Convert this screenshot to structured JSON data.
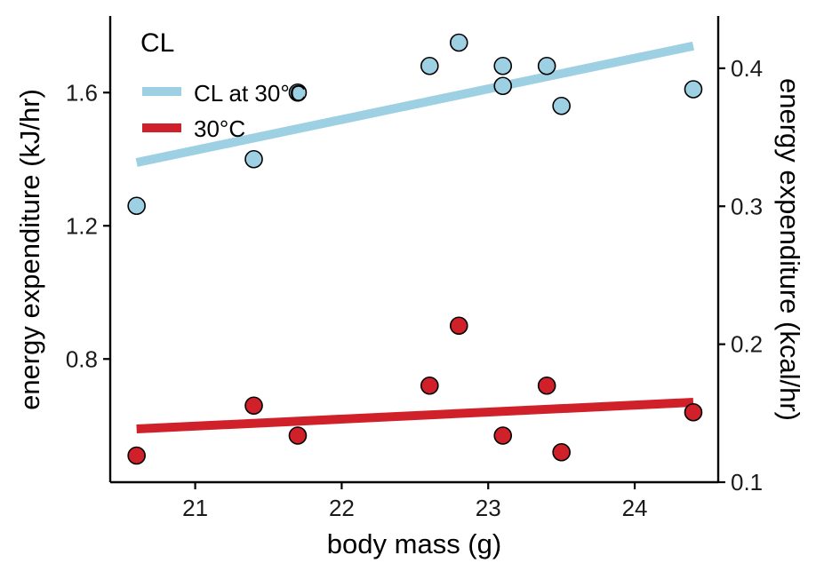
{
  "chart_data": {
    "type": "scatter",
    "xlabel": "body mass (g)",
    "ylabel": "energy expenditure (kJ/hr)",
    "y2label": "energy expenditure (kcal/hr)",
    "xlim": [
      20.42,
      24.57
    ],
    "ylim": [
      0.43,
      1.83
    ],
    "y2lim": [
      0.1,
      0.4379
    ],
    "xticks": [
      21,
      22,
      23,
      24
    ],
    "yticks": [
      0.8,
      1.2,
      1.6
    ],
    "y2ticks": [
      0.1,
      0.2,
      0.3,
      0.4
    ],
    "legend": {
      "title": "CL",
      "position": "top-left"
    },
    "series": [
      {
        "name": "CL at 30°C",
        "color": "#9ed0e3",
        "x": [
          20.6,
          21.4,
          21.7,
          22.6,
          22.8,
          23.1,
          23.1,
          23.4,
          23.5,
          24.4
        ],
        "y": [
          1.26,
          1.4,
          1.6,
          1.68,
          1.75,
          1.68,
          1.62,
          1.68,
          1.56,
          1.61
        ],
        "fit": {
          "x": [
            20.6,
            24.4
          ],
          "y": [
            1.39,
            1.74
          ]
        }
      },
      {
        "name": "30°C",
        "color": "#d0202a",
        "x": [
          20.6,
          21.4,
          21.7,
          22.6,
          22.8,
          23.1,
          23.4,
          23.5,
          24.4
        ],
        "y": [
          0.51,
          0.66,
          0.57,
          0.72,
          0.9,
          0.57,
          0.72,
          0.52,
          0.64
        ],
        "fit": {
          "x": [
            20.6,
            24.4
          ],
          "y": [
            0.59,
            0.67
          ]
        }
      }
    ]
  }
}
